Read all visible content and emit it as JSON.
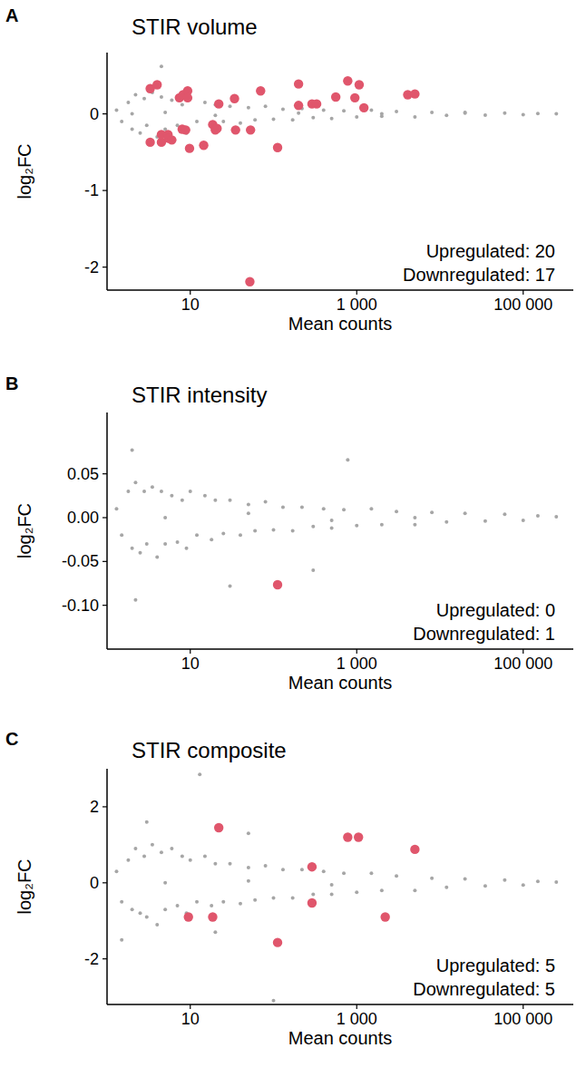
{
  "chart_data": [
    {
      "type": "scatter",
      "panel_label": "A",
      "title": "STIR volume",
      "x_label": "Mean counts",
      "y_label": "log₂FC",
      "log": "x",
      "xlim": [
        1,
        400000
      ],
      "ylim": [
        -2.3,
        0.8
      ],
      "xticks": [
        10,
        {
          "value": 1000,
          "label": "1 000"
        },
        {
          "value": 100000,
          "label": "100 000"
        }
      ],
      "yticks": [
        -2,
        -1,
        0
      ],
      "annotations": [
        "Upregulated: 20",
        "Downregulated: 17"
      ],
      "series": [
        {
          "color": "#a6a6a6",
          "marker": "circle",
          "x": [
            1.3,
            1.5,
            1.8,
            2,
            2.2,
            2.5,
            2.8,
            3,
            3.5,
            4,
            4.5,
            5,
            6,
            7,
            8,
            9,
            10,
            12,
            15,
            18,
            20,
            25,
            30,
            40,
            50,
            60,
            80,
            100,
            130,
            170,
            220,
            300,
            400,
            500,
            700,
            1000,
            1500,
            2000,
            3000,
            5000,
            8000,
            12000,
            20000,
            35000,
            60000,
            100000,
            150000,
            250000,
            4.5,
            2,
            5,
            20,
            200,
            2000,
            20000
          ],
          "values": [
            0.05,
            -0.1,
            0.15,
            -0.2,
            0.25,
            -0.25,
            0.2,
            -0.15,
            0.28,
            -0.3,
            0.22,
            -0.2,
            0.18,
            -0.15,
            0.12,
            -0.25,
            0.2,
            -0.1,
            0.15,
            -0.15,
            0.12,
            -0.1,
            0.1,
            -0.12,
            0.08,
            -0.08,
            0.1,
            -0.07,
            0.06,
            -0.08,
            0.07,
            -0.05,
            0.05,
            -0.06,
            0.04,
            -0.04,
            0.05,
            -0.03,
            0.03,
            -0.04,
            0.02,
            -0.02,
            0.02,
            -0.015,
            0.01,
            -0.01,
            0.005,
            0,
            0.62,
            0,
            0.02,
            -0.02,
            0.01,
            0,
            0.01
          ]
        },
        {
          "color": "#e0566c",
          "marker": "circle",
          "x": [
            3.3,
            4.0,
            7.4,
            8.2,
            9.3,
            9.3,
            22,
            34,
            70,
            200,
            200,
            290,
            330,
            560,
            780,
            950,
            1070,
            1220,
            4100,
            5000,
            3.3,
            4.5,
            4.5,
            5.4,
            5.5,
            8,
            8.8,
            9.8,
            14.5,
            18.6,
            20,
            35,
            53,
            112,
            52,
            21,
            6
          ],
          "values": [
            0.33,
            0.38,
            0.21,
            0.25,
            0.3,
            0.21,
            0.13,
            0.2,
            0.3,
            0.39,
            0.11,
            0.13,
            0.13,
            0.22,
            0.43,
            0.21,
            0.38,
            0.08,
            0.25,
            0.26,
            -0.37,
            -0.37,
            -0.27,
            -0.27,
            -0.32,
            -0.2,
            -0.21,
            -0.45,
            -0.41,
            -0.14,
            -0.21,
            -0.21,
            -0.21,
            -0.44,
            -2.19,
            -0.19,
            -0.34
          ]
        }
      ]
    },
    {
      "type": "scatter",
      "panel_label": "B",
      "title": "STIR intensity",
      "x_label": "Mean counts",
      "y_label": "log₂FC",
      "log": "x",
      "xlim": [
        1,
        400000
      ],
      "ylim": [
        -0.15,
        0.12
      ],
      "xticks": [
        10,
        {
          "value": 1000,
          "label": "1 000"
        },
        {
          "value": 100000,
          "label": "100 000"
        }
      ],
      "yticks": [
        0.05,
        {
          "value": 0,
          "label": "0.00"
        },
        -0.05,
        {
          "value": -0.1,
          "label": "-0.10"
        }
      ],
      "annotations": [
        "Upregulated: 0",
        "Downregulated: 1"
      ],
      "series": [
        {
          "color": "#a6a6a6",
          "marker": "circle",
          "x": [
            1.3,
            1.5,
            1.8,
            2,
            2.2,
            2.5,
            2.8,
            3,
            3.5,
            4,
            4.5,
            5,
            6,
            7,
            8,
            9,
            10,
            12,
            15,
            18,
            20,
            25,
            30,
            40,
            50,
            60,
            80,
            100,
            130,
            170,
            220,
            300,
            400,
            500,
            700,
            1000,
            1500,
            2000,
            3000,
            5000,
            8000,
            12000,
            20000,
            35000,
            60000,
            100000,
            150000,
            250000,
            2,
            2.2,
            30,
            300,
            780,
            5,
            50,
            500,
            5000
          ],
          "values": [
            0.01,
            -0.02,
            0.03,
            -0.035,
            0.04,
            -0.04,
            0.03,
            -0.03,
            0.035,
            -0.045,
            0.03,
            -0.03,
            0.025,
            -0.028,
            0.02,
            -0.035,
            0.03,
            -0.02,
            0.025,
            -0.025,
            0.02,
            -0.018,
            0.02,
            -0.02,
            0.015,
            -0.015,
            0.018,
            -0.014,
            0.012,
            -0.015,
            0.012,
            -0.01,
            0.01,
            -0.012,
            0.009,
            -0.009,
            0.01,
            -0.008,
            0.007,
            -0.008,
            0.006,
            -0.005,
            0.005,
            -0.004,
            0.004,
            -0.003,
            0.002,
            0.001,
            0.077,
            -0.094,
            -0.078,
            -0.06,
            0.066,
            0,
            0.005,
            -0.003,
            0
          ]
        },
        {
          "color": "#e0566c",
          "marker": "circle",
          "x": [
            112
          ],
          "values": [
            -0.0765
          ]
        }
      ]
    },
    {
      "type": "scatter",
      "panel_label": "C",
      "title": "STIR composite",
      "x_label": "Mean counts",
      "y_label": "log₂FC",
      "log": "x",
      "xlim": [
        1,
        400000
      ],
      "ylim": [
        -3.2,
        3.0
      ],
      "xticks": [
        10,
        {
          "value": 1000,
          "label": "1 000"
        },
        {
          "value": 100000,
          "label": "100 000"
        }
      ],
      "yticks": [
        -2,
        0,
        2
      ],
      "annotations": [
        "Upregulated: 5",
        "Downregulated: 5"
      ],
      "series": [
        {
          "color": "#a6a6a6",
          "marker": "circle",
          "x": [
            1.3,
            1.5,
            1.8,
            2,
            2.2,
            2.5,
            2.8,
            3,
            3.5,
            4,
            4.5,
            5,
            6,
            7,
            8,
            9,
            10,
            12,
            15,
            18,
            20,
            25,
            30,
            40,
            50,
            60,
            80,
            100,
            130,
            170,
            220,
            300,
            400,
            500,
            700,
            1000,
            1500,
            2000,
            3000,
            5000,
            8000,
            12000,
            20000,
            35000,
            60000,
            100000,
            150000,
            250000,
            13,
            100,
            3,
            1.5,
            50,
            20,
            5,
            50,
            500
          ],
          "values": [
            0.3,
            -0.5,
            0.6,
            -0.7,
            0.9,
            -0.8,
            0.7,
            -0.9,
            1.0,
            -1.1,
            0.8,
            -0.7,
            0.9,
            -0.6,
            0.7,
            -0.8,
            0.6,
            -0.5,
            0.7,
            -0.6,
            0.5,
            -0.5,
            0.5,
            -0.55,
            0.4,
            -0.45,
            0.45,
            -0.4,
            0.35,
            -0.4,
            0.35,
            -0.3,
            0.3,
            -0.3,
            0.25,
            -0.25,
            0.25,
            -0.2,
            0.18,
            -0.2,
            0.12,
            -0.12,
            0.1,
            -0.08,
            0.07,
            -0.06,
            0.04,
            0.02,
            2.85,
            -3.1,
            1.6,
            -1.5,
            1.3,
            -1.3,
            0,
            0.05,
            -0.05
          ]
        },
        {
          "color": "#e0566c",
          "marker": "circle",
          "x": [
            22,
            780,
            1050,
            290,
            5000,
            9.5,
            18.6,
            112,
            290,
            2200
          ],
          "values": [
            1.45,
            1.2,
            1.2,
            0.42,
            0.88,
            -0.9,
            -0.9,
            -1.57,
            -0.53,
            -0.9
          ]
        }
      ]
    }
  ]
}
